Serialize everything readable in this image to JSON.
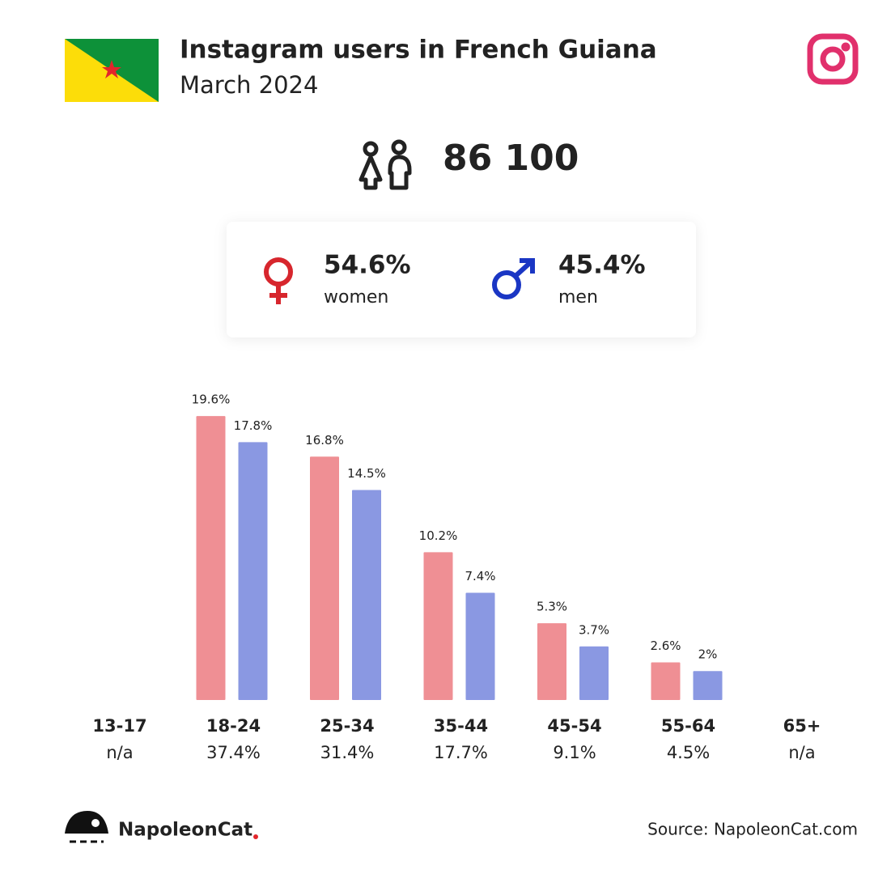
{
  "header": {
    "title": "Instagram users in French Guiana",
    "subtitle": "March 2024"
  },
  "total_users": "86 100",
  "gender": {
    "women": {
      "share": "54.6%",
      "label": "women"
    },
    "men": {
      "share": "45.4%",
      "label": "men"
    }
  },
  "chart_data": {
    "type": "bar",
    "categories": [
      "13-17",
      "18-24",
      "25-34",
      "35-44",
      "45-54",
      "55-64",
      "65+"
    ],
    "series": [
      {
        "name": "women",
        "color": "#ef8f94",
        "values": [
          null,
          19.6,
          16.8,
          10.2,
          5.3,
          2.6,
          null
        ],
        "value_labels": [
          null,
          "19.6%",
          "16.8%",
          "10.2%",
          "5.3%",
          "2.6%",
          null
        ]
      },
      {
        "name": "men",
        "color": "#8a98e2",
        "values": [
          null,
          17.8,
          14.5,
          7.4,
          3.7,
          2,
          null
        ],
        "value_labels": [
          null,
          "17.8%",
          "14.5%",
          "7.4%",
          "3.7%",
          "2%",
          null
        ]
      }
    ],
    "totals": {
      "values": [
        null,
        37.4,
        31.4,
        17.7,
        9.1,
        4.5,
        null
      ],
      "value_labels": [
        "n/a",
        "37.4%",
        "31.4%",
        "17.7%",
        "9.1%",
        "4.5%",
        "n/a"
      ]
    }
  },
  "footer": {
    "brand": "NapoleonCat",
    "source": "Source: NapoleonCat.com"
  }
}
